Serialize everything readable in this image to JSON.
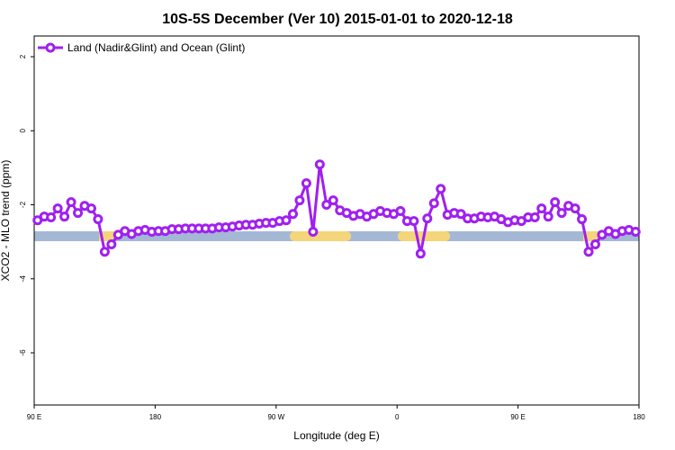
{
  "chart_data": {
    "type": "line",
    "title": "10S-5S December (Ver 10)   2015-01-01 to 2020-12-18",
    "x_label": "Longitude (deg E)",
    "y_label": "XCO2 - MLO trend (ppm)",
    "x": [
      92.5,
      97.5,
      102.5,
      107.5,
      112.5,
      117.5,
      122.5,
      127.5,
      132.5,
      137.5,
      142.5,
      147.5,
      152.5,
      157.5,
      162.5,
      167.5,
      172.5,
      177.5,
      182.5,
      187.5,
      192.5,
      197.5,
      202.5,
      207.5,
      212.5,
      217.5,
      222.5,
      227.5,
      232.5,
      237.5,
      242.5,
      247.5,
      252.5,
      257.5,
      262.5,
      267.5,
      272.5,
      277.5,
      282.5,
      287.5,
      292.5,
      297.5,
      302.5,
      307.5,
      312.5,
      317.5,
      322.5,
      327.5,
      332.5,
      337.5,
      342.5,
      347.5,
      352.5,
      357.5,
      362.5,
      367.5,
      372.5,
      377.5,
      382.5,
      387.5,
      392.5,
      397.5,
      402.5,
      407.5,
      412.5,
      417.5,
      422.5,
      427.5,
      432.5,
      437.5,
      442.5,
      447.5,
      452.5,
      457.5,
      462.5,
      467.5,
      472.5,
      477.5,
      482.5,
      487.5,
      492.5,
      497.5,
      502.5,
      507.5,
      512.5,
      517.5,
      522.5,
      527.5,
      532.5,
      537.5
    ],
    "series": [
      {
        "name": "Land (Nadir&Glint) and Ocean (Glint)",
        "color": "#a020f0",
        "values": [
          -2.42,
          -2.32,
          -2.34,
          -2.1,
          -2.32,
          -1.93,
          -2.22,
          -2.03,
          -2.1,
          -2.39,
          -3.27,
          -3.07,
          -2.81,
          -2.71,
          -2.79,
          -2.71,
          -2.68,
          -2.73,
          -2.71,
          -2.71,
          -2.66,
          -2.66,
          -2.64,
          -2.64,
          -2.64,
          -2.64,
          -2.64,
          -2.61,
          -2.61,
          -2.59,
          -2.56,
          -2.54,
          -2.54,
          -2.51,
          -2.49,
          -2.49,
          -2.44,
          -2.42,
          -2.25,
          -1.88,
          -1.42,
          -2.73,
          -0.91,
          -2.0,
          -1.88,
          -2.15,
          -2.22,
          -2.3,
          -2.25,
          -2.32,
          -2.25,
          -2.17,
          -2.22,
          -2.25,
          -2.17,
          -2.44,
          -2.44,
          -3.32,
          -2.37,
          -1.96,
          -1.57,
          -2.27,
          -2.22,
          -2.25,
          -2.37,
          -2.37,
          -2.32,
          -2.34,
          -2.32,
          -2.39,
          -2.47,
          -2.42,
          -2.44,
          -2.34,
          -2.34,
          -2.1,
          -2.32,
          -1.93,
          -2.22,
          -2.03,
          -2.1,
          -2.39,
          -3.27,
          -3.07,
          -2.81,
          -2.71,
          -2.79,
          -2.71,
          -2.68,
          -2.73
        ]
      }
    ],
    "xlim": [
      90,
      540
    ],
    "ylim": [
      -7.41,
      2.56
    ],
    "xticks": [
      {
        "value": 90,
        "label": "90 E"
      },
      180,
      {
        "value": 270,
        "label": "90 W"
      },
      {
        "value": 360,
        "label": "0"
      },
      {
        "value": 450,
        "label": "90 E"
      },
      {
        "value": 540,
        "label": "180"
      }
    ],
    "yticks": [
      2,
      0,
      -2,
      -4,
      -6
    ],
    "legend": "top-left"
  }
}
